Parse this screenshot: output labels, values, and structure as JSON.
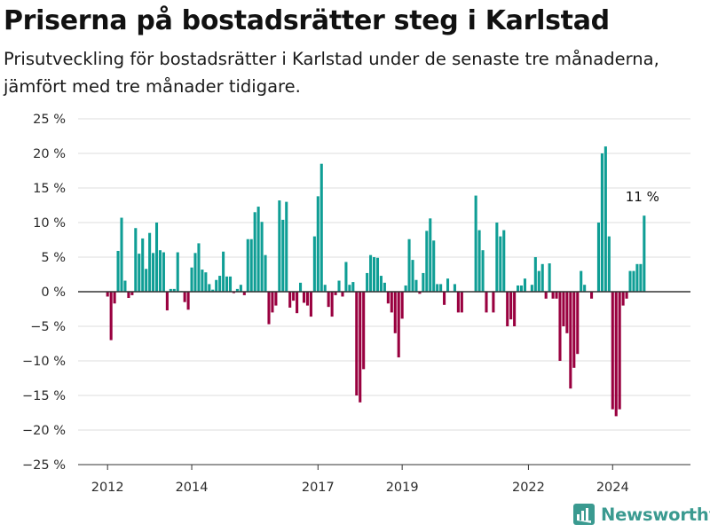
{
  "header": {
    "title": "Priserna på bostadsrätter steg i Karlstad",
    "subtitle": "Prisutveckling för bostadsrätter i Karlstad under de senaste tre månaderna, jämfört med tre månader tidigare."
  },
  "colors": {
    "positive": "#0f9e95",
    "negative": "#99003f",
    "grid": "#dedede",
    "zero_line": "#333333",
    "brand": "#3a9a90"
  },
  "brand": {
    "name": "Newsworthy",
    "icon": "newsworthy-logo-icon"
  },
  "chart_data": {
    "type": "bar",
    "title": "Priserna på bostadsrätter steg i Karlstad",
    "xlabel": "",
    "ylabel": "",
    "ylim": [
      -25,
      25
    ],
    "y_ticks": [
      25,
      20,
      15,
      10,
      5,
      0,
      -5,
      -10,
      -15,
      -20,
      -25
    ],
    "y_tick_labels": [
      "25 %",
      "20 %",
      "15 %",
      "10 %",
      "5 %",
      "0 %",
      "−5 %",
      "−10 %",
      "−15 %",
      "−20 %",
      "−25 %"
    ],
    "x_ticks": [
      2012,
      2014,
      2017,
      2019,
      2022,
      2024
    ],
    "x_tick_labels": [
      "2012",
      "2014",
      "2017",
      "2019",
      "2022",
      "2024"
    ],
    "x_unit": "year (monthly observations)",
    "x_range": [
      2011.3,
      2025.85
    ],
    "start_year": 2012,
    "start_month": 1,
    "grid": true,
    "annotation": {
      "text": "11 %"
    },
    "values": [
      -0.7,
      -7.0,
      -1.7,
      5.9,
      10.7,
      1.6,
      -0.9,
      -0.5,
      9.2,
      5.5,
      7.7,
      3.3,
      8.5,
      5.6,
      10.0,
      6.0,
      5.7,
      -2.7,
      0.4,
      0.4,
      5.7,
      0.1,
      -1.5,
      -2.6,
      3.5,
      5.6,
      7.0,
      3.2,
      2.8,
      1.1,
      0.3,
      1.7,
      2.3,
      5.8,
      2.2,
      2.2,
      -0.2,
      0.4,
      1.0,
      -0.5,
      7.6,
      7.6,
      11.5,
      12.3,
      10.1,
      5.3,
      -4.7,
      -3.0,
      -2.0,
      13.2,
      10.4,
      13.0,
      -2.3,
      -1.3,
      -3.1,
      1.3,
      -1.6,
      -2.0,
      -3.6,
      8.0,
      13.8,
      18.5,
      1.0,
      -2.2,
      -3.6,
      -0.5,
      1.6,
      -0.7,
      4.3,
      1.0,
      1.4,
      -15.0,
      -16.0,
      -11.2,
      2.7,
      5.3,
      5.0,
      4.9,
      2.3,
      1.3,
      -1.7,
      -3.0,
      -6.0,
      -9.5,
      -3.9,
      0.9,
      7.6,
      4.6,
      1.7,
      -0.3,
      2.7,
      8.8,
      10.6,
      7.4,
      1.1,
      1.1,
      -1.9,
      1.9,
      0.0,
      1.1,
      -3.0,
      -3.0,
      0.0,
      0.0,
      0.0,
      13.9,
      8.9,
      6.0,
      -3.0,
      0.0,
      -3.0,
      10.0,
      8.0,
      8.9,
      -5.0,
      -4.0,
      -5.0,
      0.9,
      0.9,
      1.9,
      0.0,
      1.0,
      5.0,
      3.0,
      4.0,
      -1.0,
      4.1,
      -1.0,
      -1.0,
      -10.0,
      -5.0,
      -6.0,
      -14.0,
      -11.0,
      -9.0,
      3.0,
      1.0,
      0.0,
      -1.0,
      0.0,
      10.0,
      20.0,
      21.0,
      8.0,
      -17.0,
      -18.0,
      -17.0,
      -2.0,
      -1.0,
      3.0,
      3.0,
      4.0,
      4.0,
      11.0
    ]
  }
}
